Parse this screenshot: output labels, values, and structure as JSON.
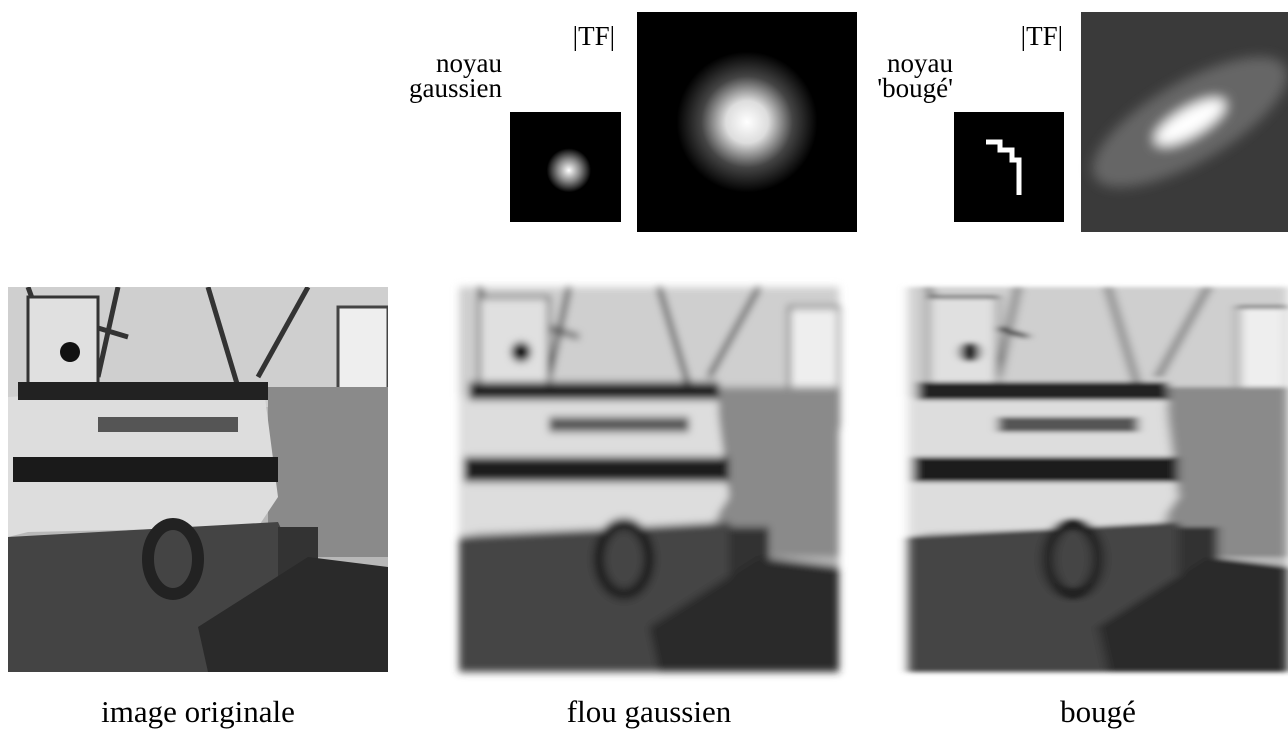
{
  "kernels": [
    {
      "label": [
        "noyau",
        "gaussien"
      ],
      "tf_label": "|TF|"
    },
    {
      "label": [
        "noyau",
        "'bougé'"
      ],
      "tf_label": "|TF|"
    }
  ],
  "images": [
    {
      "caption": "image originale"
    },
    {
      "caption": "flou gaussien"
    },
    {
      "caption": "bougé"
    }
  ]
}
